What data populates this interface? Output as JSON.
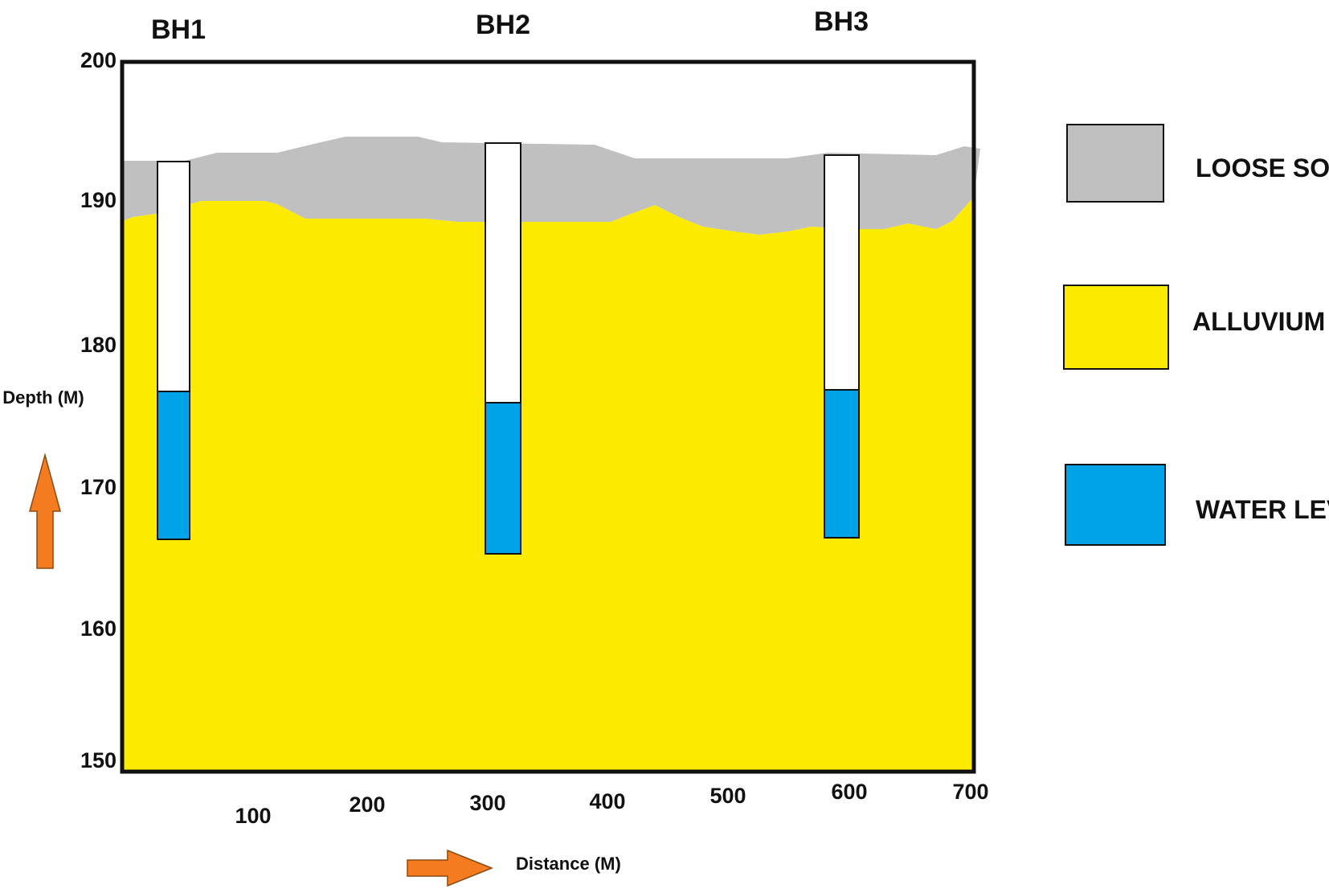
{
  "borehole_labels": [
    "BH1",
    "BH2",
    "BH3"
  ],
  "y_axis": {
    "label": "Depth (M)",
    "ticks": [
      "200",
      "190",
      "180",
      "170",
      "160",
      "150"
    ]
  },
  "x_axis": {
    "label": "Distance (M)",
    "ticks": [
      "100",
      "200",
      "300",
      "400",
      "500",
      "600",
      "700"
    ]
  },
  "legend": {
    "loose_soil": "LOOSE SOIL",
    "alluvium": "ALLUVIUM",
    "water_level": "WATER LEVEL"
  },
  "colors": {
    "loose_soil": "#c0c0c0",
    "alluvium": "#fcea00",
    "water_level": "#00a2e8",
    "borehole_casing": "#ffffff",
    "arrow": "#f47b20",
    "frame": "#111111"
  },
  "icons": {
    "up_arrow": "up-arrow-icon",
    "right_arrow": "right-arrow-icon"
  }
}
